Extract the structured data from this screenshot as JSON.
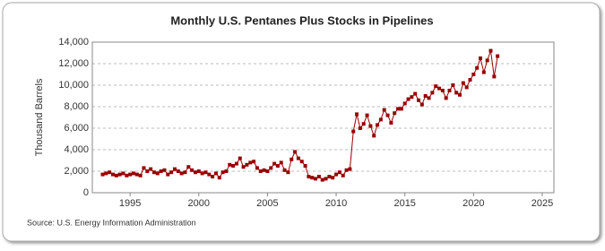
{
  "chart_data": {
    "type": "line",
    "title": "Monthly U.S. Pentanes Plus Stocks in Pipelines",
    "y_label": "Thousand Barrels",
    "source": "Source: U.S. Energy Information Administration",
    "color": "#990000",
    "grid": true,
    "xlim": [
      1992.25,
      2025.85
    ],
    "ylim": [
      0,
      14000
    ],
    "xticks": [
      1995,
      2000,
      2005,
      2010,
      2015,
      2020,
      2025
    ],
    "yticks": [
      0,
      {
        "value": 2000,
        "label": "2,000"
      },
      {
        "value": 4000,
        "label": "4,000"
      },
      {
        "value": 6000,
        "label": "6,000"
      },
      {
        "value": 8000,
        "label": "8,000"
      },
      {
        "value": 10000,
        "label": "10,000"
      },
      {
        "value": 12000,
        "label": "12,000"
      },
      {
        "value": 14000,
        "label": "14,000"
      }
    ],
    "x": [
      1993,
      1993.25,
      1993.5,
      1993.75,
      1994,
      1994.25,
      1994.5,
      1994.75,
      1995,
      1995.25,
      1995.5,
      1995.75,
      1996,
      1996.25,
      1996.5,
      1996.75,
      1997,
      1997.25,
      1997.5,
      1997.75,
      1998,
      1998.25,
      1998.5,
      1998.75,
      1999,
      1999.25,
      1999.5,
      1999.75,
      2000,
      2000.25,
      2000.5,
      2000.75,
      2001,
      2001.25,
      2001.5,
      2001.75,
      2002,
      2002.25,
      2002.5,
      2002.75,
      2003,
      2003.25,
      2003.5,
      2003.75,
      2004,
      2004.25,
      2004.5,
      2004.75,
      2005,
      2005.25,
      2005.5,
      2005.75,
      2006,
      2006.25,
      2006.5,
      2006.75,
      2007,
      2007.25,
      2007.5,
      2007.75,
      2008,
      2008.25,
      2008.5,
      2008.75,
      2009,
      2009.25,
      2009.5,
      2009.75,
      2010,
      2010.25,
      2010.5,
      2010.75,
      2011,
      2011.25,
      2011.5,
      2011.75,
      2012,
      2012.25,
      2012.5,
      2012.75,
      2013,
      2013.25,
      2013.5,
      2013.75,
      2014,
      2014.25,
      2014.5,
      2014.75,
      2015,
      2015.25,
      2015.5,
      2015.75,
      2016,
      2016.25,
      2016.5,
      2016.75,
      2017,
      2017.25,
      2017.5,
      2017.75,
      2018,
      2018.25,
      2018.5,
      2018.75,
      2019,
      2019.25,
      2019.5,
      2019.75,
      2020,
      2020.25,
      2020.5,
      2020.75,
      2021,
      2021.25,
      2021.5,
      2021.75
    ],
    "values": [
      1700,
      1800,
      1900,
      1700,
      1600,
      1700,
      1800,
      1600,
      1700,
      1800,
      1700,
      1600,
      2300,
      2000,
      2200,
      1900,
      1800,
      2000,
      2100,
      1700,
      1900,
      2200,
      2000,
      1800,
      1900,
      2400,
      2100,
      1900,
      2000,
      1800,
      1900,
      1700,
      1500,
      1800,
      1400,
      1900,
      2000,
      2600,
      2500,
      2700,
      3200,
      2400,
      2600,
      2800,
      2900,
      2300,
      2000,
      2100,
      2000,
      2300,
      2700,
      2500,
      2800,
      2100,
      1900,
      3100,
      3800,
      3200,
      2900,
      2500,
      1500,
      1400,
      1300,
      1500,
      1200,
      1300,
      1500,
      1400,
      1700,
      1900,
      1600,
      2100,
      2200,
      5700,
      7300,
      6000,
      6400,
      7200,
      6200,
      5300,
      6300,
      6800,
      7700,
      7200,
      6500,
      7400,
      7800,
      7800,
      8300,
      8700,
      8900,
      9200,
      8600,
      8200,
      9000,
      8800,
      9300,
      9900,
      9700,
      9500,
      8800,
      9500,
      10000,
      9300,
      9100,
      10200,
      9800,
      10500,
      11000,
      11600,
      12500,
      11200,
      12300,
      13200,
      10800,
      12700
    ]
  }
}
